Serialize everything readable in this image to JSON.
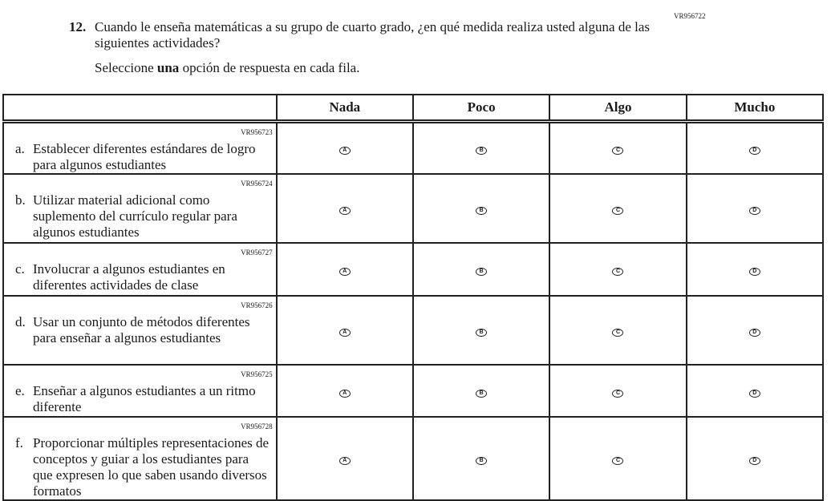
{
  "question": {
    "number": "12.",
    "text": "Cuando le enseña matemáticas a su grupo de cuarto grado, ¿en qué medida realiza usted alguna de las siguientes actividades?",
    "code": "VR956722",
    "instruction_pre": "Seleccione ",
    "instruction_bold": "una",
    "instruction_post": " opción de respuesta en cada fila."
  },
  "columns": [
    "Nada",
    "Poco",
    "Algo",
    "Mucho"
  ],
  "options": [
    "A",
    "B",
    "C",
    "D"
  ],
  "rows": [
    {
      "letter": "a.",
      "code": "VR956723",
      "text": "Establecer diferentes estándares de logro para algunos estudiantes"
    },
    {
      "letter": "b.",
      "code": "VR956724",
      "text": "Utilizar material adicional como suplemento del currículo regular para algunos estudiantes"
    },
    {
      "letter": "c.",
      "code": "VR956727",
      "text": "Involucrar a algunos estudiantes en diferentes actividades de clase"
    },
    {
      "letter": "d.",
      "code": "VR956726",
      "text": "Usar un conjunto de métodos diferentes para enseñar a algunos estudiantes"
    },
    {
      "letter": "e.",
      "code": "VR956725",
      "text": "Enseñar a algunos estudiantes a un ritmo diferente"
    },
    {
      "letter": "f.",
      "code": "VR956728",
      "text": "Proporcionar múltiples representaciones de conceptos y guiar a los estudiantes para que expresen lo que saben usando diversos formatos"
    }
  ]
}
